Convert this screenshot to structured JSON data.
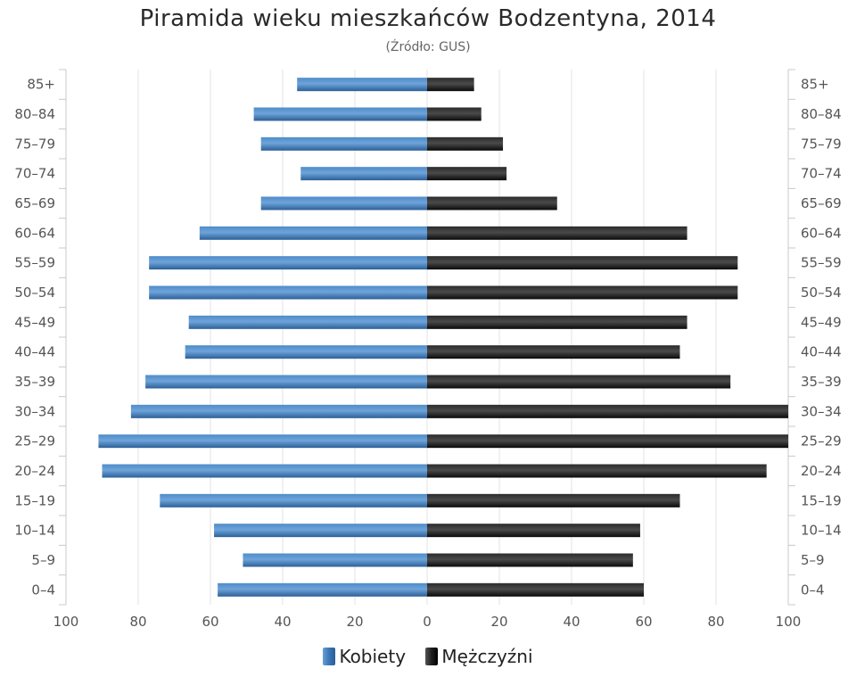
{
  "chart_data": {
    "type": "bar",
    "title": "Piramida wieku mieszkańców Bodzentyna, 2014",
    "subtitle": "(Źródło: GUS)",
    "categories": [
      "85+",
      "80–84",
      "75–79",
      "70–74",
      "65–69",
      "60–64",
      "55–59",
      "50–54",
      "45–49",
      "40–44",
      "35–39",
      "30–34",
      "25–29",
      "20–24",
      "15–19",
      "10–14",
      "5–9",
      "0–4"
    ],
    "series": [
      {
        "name": "Kobiety",
        "values": [
          36,
          48,
          46,
          35,
          46,
          63,
          77,
          77,
          66,
          67,
          78,
          82,
          91,
          90,
          74,
          59,
          51,
          58
        ]
      },
      {
        "name": "Mężczyźni",
        "values": [
          13,
          15,
          21,
          22,
          36,
          72,
          86,
          86,
          72,
          70,
          84,
          100,
          100,
          94,
          70,
          59,
          57,
          60
        ]
      }
    ],
    "x_tick_labels": [
      "100",
      "80",
      "60",
      "40",
      "20",
      "0",
      "20",
      "40",
      "60",
      "80",
      "100"
    ],
    "xlim": [
      -100,
      100
    ],
    "grid": true,
    "legend_position": "bottom",
    "colors": {
      "female": "#3a78b8",
      "male": "#1e1e1e",
      "grid": "#e3e3e3",
      "axis": "#c8c8c8"
    }
  }
}
